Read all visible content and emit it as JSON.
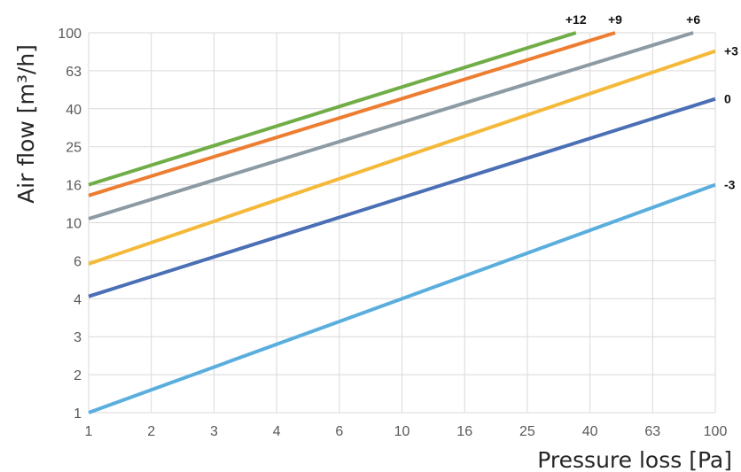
{
  "chart_data": {
    "type": "line",
    "title": "",
    "xlabel": "Pressure loss [Pa]",
    "ylabel": "Air flow [m³/h]",
    "x_ticks": [
      "1",
      "2",
      "3",
      "4",
      "6",
      "10",
      "16",
      "25",
      "40",
      "63",
      "100"
    ],
    "y_ticks": [
      "1",
      "2",
      "3",
      "4",
      "6",
      "10",
      "16",
      "25",
      "40",
      "63",
      "100"
    ],
    "xlim": [
      1,
      100
    ],
    "ylim": [
      1,
      100
    ],
    "grid": true,
    "legend": "labels at line ends",
    "series": [
      {
        "name": "+12",
        "color": "#70ad47",
        "x": [
          1,
          36
        ],
        "y": [
          16,
          100
        ]
      },
      {
        "name": "+9",
        "color": "#ed7d31",
        "x": [
          1,
          48
        ],
        "y": [
          14,
          100
        ]
      },
      {
        "name": "+6",
        "color": "#8c9aa3",
        "x": [
          1,
          85
        ],
        "y": [
          10.5,
          100
        ]
      },
      {
        "name": "+3",
        "color": "#f5b93a",
        "x": [
          1,
          100
        ],
        "y": [
          5.8,
          80
        ]
      },
      {
        "name": "0",
        "color": "#4a6fb5",
        "x": [
          1,
          100
        ],
        "y": [
          4.1,
          45
        ]
      },
      {
        "name": "-3",
        "color": "#5aaede",
        "x": [
          1,
          100
        ],
        "y": [
          1,
          16
        ]
      }
    ]
  }
}
